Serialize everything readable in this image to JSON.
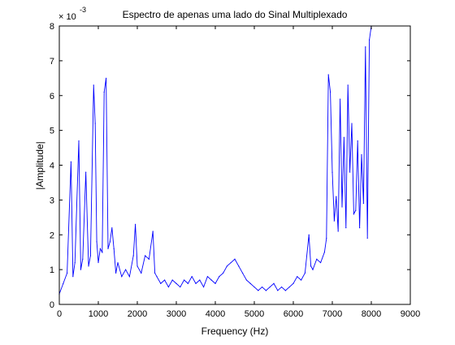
{
  "chart_data": {
    "type": "line",
    "title": "Espectro de apenas uma lado do Sinal Multiplexado",
    "xlabel": "Frequency (Hz)",
    "ylabel": "|Amplitude|",
    "xlim": [
      0,
      9000
    ],
    "ylim": [
      0,
      0.008
    ],
    "xticks": [
      0,
      1000,
      2000,
      3000,
      4000,
      5000,
      6000,
      7000,
      8000,
      9000
    ],
    "xtick_labels": [
      "0",
      "1000",
      "2000",
      "3000",
      "4000",
      "5000",
      "6000",
      "7000",
      "8000",
      "9000"
    ],
    "yticks": [
      0,
      0.001,
      0.002,
      0.003,
      0.004,
      0.005,
      0.006,
      0.007,
      0.008
    ],
    "ytick_labels": [
      "0",
      "1",
      "2",
      "3",
      "4",
      "5",
      "6",
      "7",
      "8"
    ],
    "y_multiplier": {
      "base": "× 10",
      "exponent": "-3"
    },
    "grid": false,
    "series": [
      {
        "color": "#0000ff",
        "x": [
          0,
          100,
          200,
          300,
          350,
          400,
          500,
          550,
          600,
          680,
          750,
          800,
          880,
          920,
          960,
          1000,
          1050,
          1100,
          1150,
          1200,
          1250,
          1300,
          1350,
          1400,
          1450,
          1500,
          1600,
          1700,
          1800,
          1900,
          1950,
          2000,
          2100,
          2200,
          2300,
          2400,
          2450,
          2500,
          2600,
          2700,
          2800,
          2900,
          3000,
          3100,
          3200,
          3300,
          3400,
          3500,
          3600,
          3700,
          3800,
          3900,
          4000,
          4100,
          4200,
          4300,
          4400,
          4500,
          4600,
          4700,
          4800,
          4900,
          5000,
          5100,
          5200,
          5300,
          5400,
          5500,
          5600,
          5700,
          5800,
          5900,
          6000,
          6100,
          6200,
          6300,
          6400,
          6450,
          6500,
          6600,
          6700,
          6800,
          6850,
          6900,
          6950,
          7000,
          7050,
          7100,
          7150,
          7200,
          7250,
          7300,
          7350,
          7400,
          7450,
          7500,
          7550,
          7600,
          7650,
          7700,
          7750,
          7800,
          7850,
          7900,
          7950,
          8000
        ],
        "y": [
          0.0003,
          0.0006,
          0.0009,
          0.0041,
          0.0008,
          0.0012,
          0.0047,
          0.001,
          0.0013,
          0.0038,
          0.0011,
          0.0014,
          0.0063,
          0.0052,
          0.0018,
          0.0012,
          0.0016,
          0.0015,
          0.0061,
          0.0065,
          0.0016,
          0.0018,
          0.0022,
          0.0016,
          0.0009,
          0.0012,
          0.0008,
          0.001,
          0.0008,
          0.0014,
          0.0023,
          0.0011,
          0.0009,
          0.0014,
          0.0013,
          0.0021,
          0.0009,
          0.0008,
          0.0006,
          0.0007,
          0.0005,
          0.0007,
          0.0006,
          0.0005,
          0.0007,
          0.0006,
          0.0008,
          0.0006,
          0.0007,
          0.0005,
          0.0008,
          0.0007,
          0.0006,
          0.0008,
          0.0009,
          0.0011,
          0.0012,
          0.0013,
          0.0011,
          0.0009,
          0.0007,
          0.0006,
          0.0005,
          0.0004,
          0.0005,
          0.0004,
          0.0005,
          0.0006,
          0.0004,
          0.0005,
          0.0004,
          0.0005,
          0.0006,
          0.0008,
          0.0007,
          0.0009,
          0.002,
          0.0011,
          0.001,
          0.0013,
          0.0012,
          0.0015,
          0.0019,
          0.0066,
          0.0061,
          0.0038,
          0.0024,
          0.0031,
          0.0021,
          0.0059,
          0.0028,
          0.0048,
          0.0022,
          0.0063,
          0.0038,
          0.0052,
          0.0026,
          0.0027,
          0.0047,
          0.0022,
          0.0043,
          0.0029,
          0.0074,
          0.0019,
          0.0076,
          0.008
        ]
      }
    ]
  }
}
